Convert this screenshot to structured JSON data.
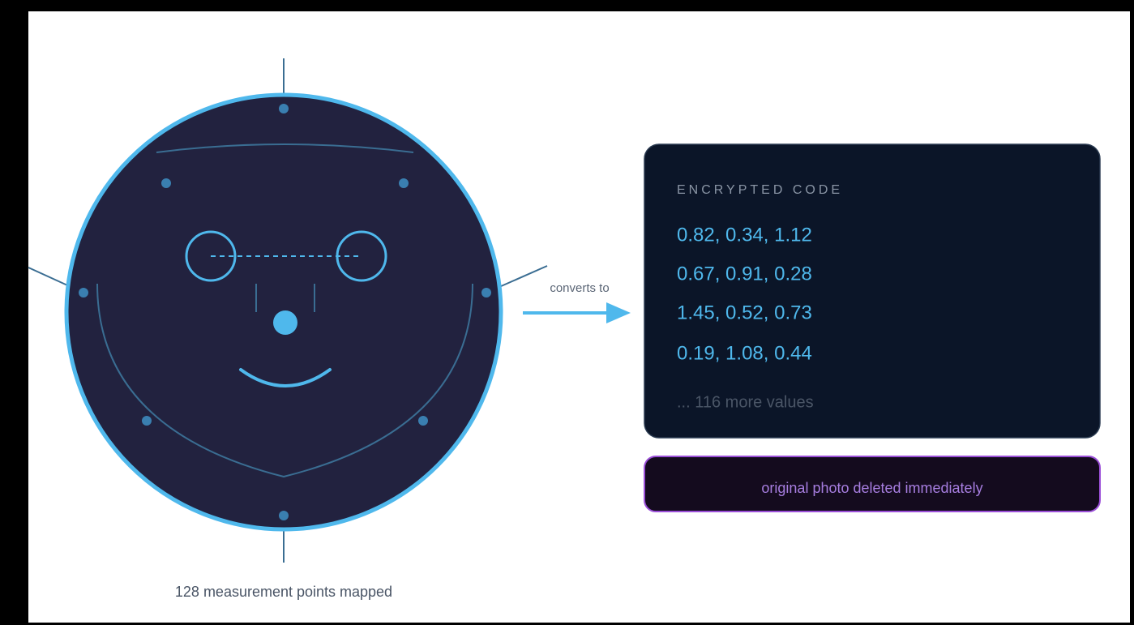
{
  "connector": {
    "label": "converts to"
  },
  "caption": "128 measurement points mapped",
  "code_panel": {
    "title": "ENCRYPTED CODE",
    "rows": [
      "0.82, 0.34, 1.12",
      "0.67, 0.91, 0.28",
      "1.45, 0.52, 0.73",
      "0.19, 1.08, 0.44"
    ],
    "more": "... 116 more values"
  },
  "notice": "original photo deleted immediately"
}
